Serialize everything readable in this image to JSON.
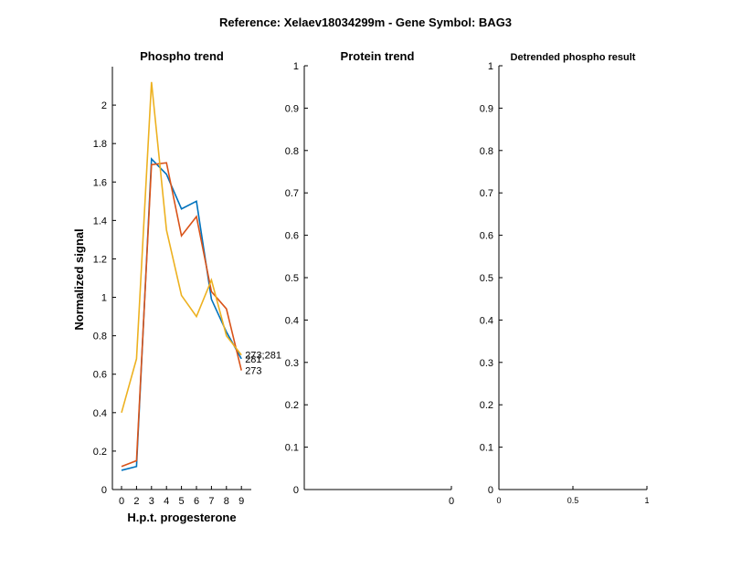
{
  "figure_title": "Reference:  Xelaev18034299m - Gene Symbol:  BAG3",
  "chart_data": [
    {
      "type": "line",
      "title": "Phospho trend",
      "xlabel": "H.p.t. progesterone",
      "ylabel": "Normalized signal",
      "categories": [
        "0",
        "2",
        "3",
        "4",
        "5",
        "6",
        "7",
        "8",
        "9"
      ],
      "ylim": [
        0,
        2.2
      ],
      "yticks": [
        0,
        0.2,
        0.4,
        0.6,
        0.8,
        1,
        1.2,
        1.4,
        1.6,
        1.8,
        2
      ],
      "ytick_labels": [
        "0",
        "0.2",
        "0.4",
        "0.6",
        "0.8",
        "1",
        "1.2",
        "1.4",
        "1.6",
        "1.8",
        "2"
      ],
      "series": [
        {
          "name": "281",
          "color": "#0072BD",
          "values": [
            0.1,
            0.12,
            1.72,
            1.64,
            1.46,
            1.5,
            0.99,
            0.82,
            0.68
          ]
        },
        {
          "name": "273",
          "color": "#D95319",
          "values": [
            0.12,
            0.15,
            1.69,
            1.7,
            1.32,
            1.42,
            1.03,
            0.94,
            0.62
          ]
        },
        {
          "name": "273;281",
          "color": "#EDB120",
          "values": [
            0.4,
            0.68,
            2.12,
            1.35,
            1.01,
            0.9,
            1.09,
            0.8,
            0.7
          ]
        }
      ],
      "end_labels": [
        "281",
        "273",
        "273;281"
      ]
    },
    {
      "type": "line",
      "title": "Protein trend",
      "ylim": [
        0,
        1
      ],
      "yticks": [
        0,
        0.1,
        0.2,
        0.3,
        0.4,
        0.5,
        0.6,
        0.7,
        0.8,
        0.9,
        1
      ],
      "ytick_labels": [
        "0",
        "0.1",
        "0.2",
        "0.3",
        "0.4",
        "0.5",
        "0.6",
        "0.7",
        "0.8",
        "0.9",
        "1"
      ],
      "xticks": [
        0
      ],
      "xtick_labels": [
        "0"
      ],
      "series": []
    },
    {
      "type": "line",
      "title": "Detrended phospho result",
      "ylim": [
        0,
        1
      ],
      "xlim": [
        0,
        1
      ],
      "yticks": [
        0,
        0.1,
        0.2,
        0.3,
        0.4,
        0.5,
        0.6,
        0.7,
        0.8,
        0.9,
        1
      ],
      "ytick_labels": [
        "0",
        "0.1",
        "0.2",
        "0.3",
        "0.4",
        "0.5",
        "0.6",
        "0.7",
        "0.8",
        "0.9",
        "1"
      ],
      "xticks": [
        0,
        0.5,
        1
      ],
      "xtick_labels": [
        "0",
        "0.5",
        "1"
      ],
      "series": []
    }
  ]
}
